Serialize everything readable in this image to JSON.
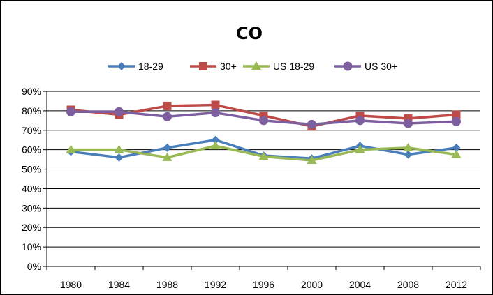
{
  "chart_data": {
    "type": "line",
    "title": "CO",
    "xlabel": "",
    "ylabel": "",
    "x": [
      "1980",
      "1984",
      "1988",
      "1992",
      "1996",
      "2000",
      "2004",
      "2008",
      "2012"
    ],
    "y_ticks": [
      "0%",
      "10%",
      "20%",
      "30%",
      "40%",
      "50%",
      "60%",
      "70%",
      "80%",
      "90%"
    ],
    "ylim": [
      0,
      90
    ],
    "grid": "horizontal",
    "legend_position": "top",
    "series": [
      {
        "name": "18-29",
        "color": "#4a7ebb",
        "marker": "diamond",
        "values": [
          59,
          56,
          61,
          65,
          57,
          55.5,
          62,
          57.5,
          61
        ]
      },
      {
        "name": "30+",
        "color": "#be4b48",
        "marker": "square",
        "values": [
          80.5,
          78,
          82.5,
          83,
          77.5,
          72,
          77.5,
          76,
          78
        ]
      },
      {
        "name": "US 18-29",
        "color": "#98b954",
        "marker": "triangle",
        "values": [
          60,
          60,
          56,
          62,
          56.5,
          54.5,
          60,
          61,
          57.5
        ]
      },
      {
        "name": "US 30+",
        "color": "#7d5fa0",
        "marker": "circle",
        "values": [
          79.5,
          79.5,
          77,
          79,
          75,
          73,
          75,
          73.5,
          74.5
        ]
      }
    ]
  }
}
